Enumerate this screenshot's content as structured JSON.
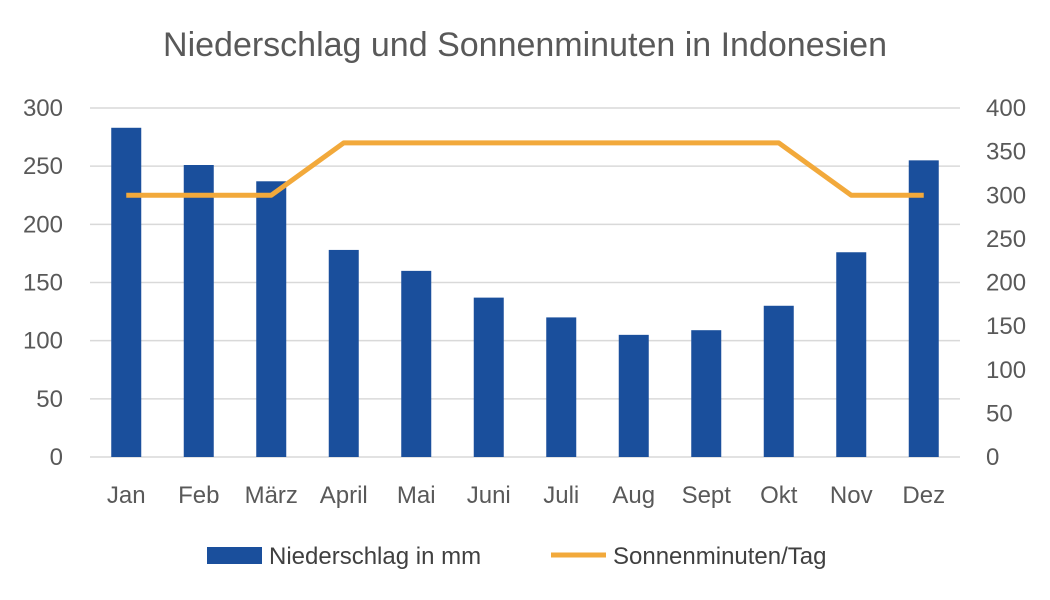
{
  "chart_data": {
    "type": "bar",
    "title": "Niederschlag und Sonnenminuten in Indonesien",
    "categories": [
      "Jan",
      "Feb",
      "März",
      "April",
      "Mai",
      "Juni",
      "Juli",
      "Aug",
      "Sept",
      "Okt",
      "Nov",
      "Dez"
    ],
    "series": [
      {
        "name": "Niederschlag in mm",
        "type": "bar",
        "axis": "left",
        "color": "#1a4f9c",
        "values": [
          283,
          251,
          237,
          178,
          160,
          137,
          120,
          105,
          109,
          130,
          176,
          255
        ]
      },
      {
        "name": "Sonnenminuten/Tag",
        "type": "line",
        "axis": "right",
        "color": "#f2a93b",
        "values": [
          300,
          300,
          300,
          360,
          360,
          360,
          360,
          360,
          360,
          360,
          300,
          300
        ]
      }
    ],
    "y_left": {
      "min": 0,
      "max": 300,
      "ticks": [
        0,
        50,
        100,
        150,
        200,
        250,
        300
      ]
    },
    "y_right": {
      "min": 0,
      "max": 400,
      "ticks": [
        0,
        50,
        100,
        150,
        200,
        250,
        300,
        350,
        400
      ]
    },
    "grid": true,
    "legend_position": "bottom"
  }
}
